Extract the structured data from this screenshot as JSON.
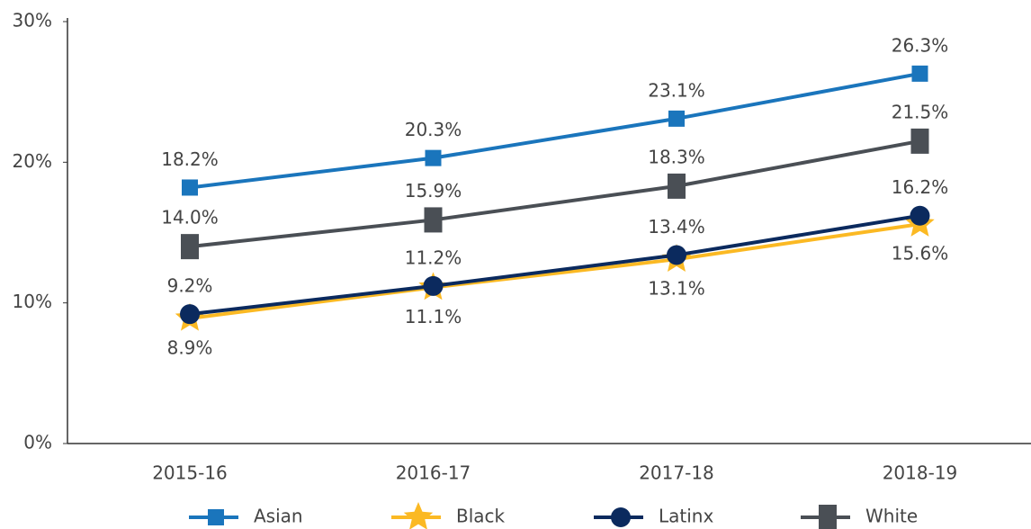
{
  "chart_data": {
    "type": "line",
    "categories": [
      "2015-16",
      "2016-17",
      "2017-18",
      "2018-19"
    ],
    "series": [
      {
        "name": "Asian",
        "color": "#1a75bc",
        "values": [
          18.2,
          20.3,
          23.1,
          26.3
        ],
        "value_labels": [
          "18.2%",
          "20.3%",
          "23.1%",
          "26.3%"
        ]
      },
      {
        "name": "Black",
        "color": "#fbb923",
        "values": [
          8.9,
          11.1,
          13.1,
          15.6
        ],
        "value_labels": [
          "8.9%",
          "11.1%",
          "13.1%",
          "15.6%"
        ]
      },
      {
        "name": "Latinx",
        "color": "#0b2a5e",
        "values": [
          9.2,
          11.2,
          13.4,
          16.2
        ],
        "value_labels": [
          "9.2%",
          "11.2%",
          "13.4%",
          "16.2%"
        ]
      },
      {
        "name": "White",
        "color": "#4a4f55",
        "values": [
          14.0,
          15.9,
          18.3,
          21.5
        ],
        "value_labels": [
          "14.0%",
          "15.9%",
          "18.3%",
          "21.5%"
        ]
      }
    ],
    "ylim": [
      0,
      30
    ],
    "yticks": [
      {
        "value": 0,
        "label": "0%"
      },
      {
        "value": 10,
        "label": "10%"
      },
      {
        "value": 20,
        "label": "20%"
      },
      {
        "value": 30,
        "label": "30%"
      }
    ],
    "legend": "bottom"
  }
}
